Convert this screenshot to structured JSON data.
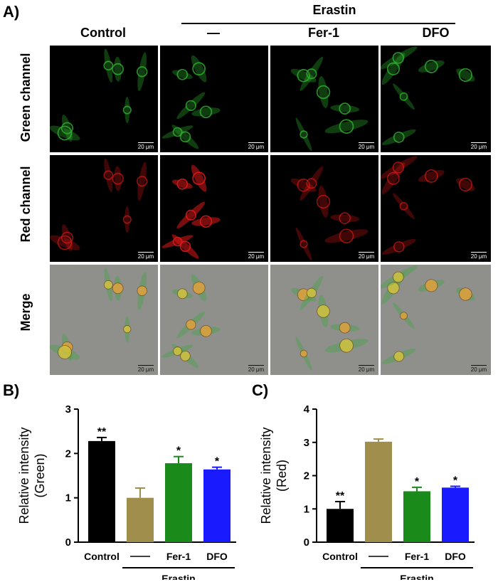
{
  "panel_a": {
    "letter": "A)",
    "treatment_header": "Erastin",
    "columns": [
      "Control",
      "—",
      "Fer-1",
      "DFO"
    ],
    "rows": [
      "Green channel",
      "Red channel",
      "Merge"
    ],
    "scale_bar": "20 μm"
  },
  "panel_b": {
    "letter": "B)"
  },
  "panel_c": {
    "letter": "C)"
  },
  "colors": {
    "control": "#000000",
    "erastin": "#a08f4c",
    "fer1": "#1a8a1a",
    "dfo": "#1a1aff",
    "green_cells": "#2fae2f",
    "red_cells": "#d81818"
  },
  "chart_data": [
    {
      "type": "bar",
      "panel": "B",
      "categories": [
        "Control",
        "——",
        "Fer-1",
        "DFO"
      ],
      "group_label": "Erastin",
      "values": [
        2.28,
        1.0,
        1.78,
        1.64
      ],
      "errors": [
        0.08,
        0.22,
        0.15,
        0.05
      ],
      "significance": [
        "**",
        "",
        "*",
        "*"
      ],
      "ylabel": "Relative intensity\n(Green)",
      "ylim": [
        0,
        3
      ],
      "yticks": [
        0,
        1,
        2,
        3
      ]
    },
    {
      "type": "bar",
      "panel": "C",
      "categories": [
        "Control",
        "——",
        "Fer-1",
        "DFO"
      ],
      "group_label": "Erastin",
      "values": [
        1.0,
        3.02,
        1.53,
        1.64
      ],
      "errors": [
        0.22,
        0.08,
        0.12,
        0.04
      ],
      "significance": [
        "**",
        "",
        "*",
        "*"
      ],
      "ylabel": "Relative intensity\n(Red)",
      "ylim": [
        0,
        4
      ],
      "yticks": [
        0,
        1,
        2,
        3,
        4
      ]
    }
  ]
}
